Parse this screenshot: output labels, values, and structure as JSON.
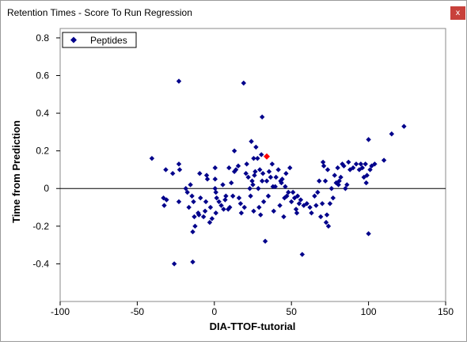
{
  "window": {
    "title": "Retention Times - Score To Run Regression",
    "close_label": "x"
  },
  "colors": {
    "points": "#00008b",
    "selected_point": "#ff0000",
    "axis": "#000000"
  },
  "chart_data": {
    "type": "scatter",
    "xlabel": "DIA-TTOF-tutorial",
    "ylabel": "Time from Prediction",
    "xlim": [
      -100,
      150
    ],
    "ylim": [
      -0.6,
      0.85
    ],
    "xticks": [
      -100,
      -50,
      0,
      50,
      100,
      150
    ],
    "yticks": [
      -0.4,
      -0.2,
      0,
      0.2,
      0.4,
      0.6,
      0.8
    ],
    "xtick_labels": [
      "-100",
      "-50",
      "0",
      "50",
      "100",
      "150"
    ],
    "ytick_labels": [
      "-0.4",
      "-0.2",
      "0",
      "0.2",
      "0.4",
      "0.6",
      "0.8"
    ],
    "legend": {
      "position": "top-left",
      "entries": [
        "Peptides"
      ]
    },
    "reference_line_y": 0,
    "series": [
      {
        "name": "Peptides",
        "points": [
          [
            -40.5,
            0.16
          ],
          [
            -33,
            -0.05
          ],
          [
            -32.5,
            -0.09
          ],
          [
            -31.5,
            0.1
          ],
          [
            -31,
            -0.06
          ],
          [
            -27,
            0.08
          ],
          [
            -26,
            -0.4
          ],
          [
            -23,
            0.57
          ],
          [
            -23,
            0.13
          ],
          [
            -23,
            -0.07
          ],
          [
            -22.5,
            0.1
          ],
          [
            -18.5,
            0.0
          ],
          [
            -17.5,
            -0.02
          ],
          [
            -16.5,
            -0.1
          ],
          [
            -15.5,
            0.02
          ],
          [
            -14.5,
            -0.04
          ],
          [
            -14,
            -0.39
          ],
          [
            -14,
            -0.23
          ],
          [
            -13.5,
            -0.07
          ],
          [
            -13,
            -0.15
          ],
          [
            -12.5,
            -0.2
          ],
          [
            -10.5,
            -0.13
          ],
          [
            -10,
            -0.14
          ],
          [
            -9.5,
            0.08
          ],
          [
            -9,
            -0.05
          ],
          [
            -7,
            -0.15
          ],
          [
            -6,
            -0.12
          ],
          [
            -5.5,
            -0.07
          ],
          [
            -5,
            0.07
          ],
          [
            -4.5,
            0.05
          ],
          [
            -3,
            -0.18
          ],
          [
            -2.5,
            -0.1
          ],
          [
            -1.5,
            -0.16
          ],
          [
            0.5,
            0.11
          ],
          [
            0.5,
            0.05
          ],
          [
            0.5,
            0.0
          ],
          [
            1,
            -0.02
          ],
          [
            1,
            -0.13
          ],
          [
            1.5,
            -0.05
          ],
          [
            3,
            -0.07
          ],
          [
            4.5,
            -0.09
          ],
          [
            5.5,
            0.02
          ],
          [
            6,
            -0.11
          ],
          [
            7,
            -0.06
          ],
          [
            7.5,
            -0.04
          ],
          [
            9,
            -0.11
          ],
          [
            9.5,
            0.11
          ],
          [
            10,
            -0.1
          ],
          [
            11,
            0.03
          ],
          [
            12,
            -0.04
          ],
          [
            13,
            0.09
          ],
          [
            13,
            0.2
          ],
          [
            14,
            0.1
          ],
          [
            15.5,
            0.12
          ],
          [
            16,
            -0.05
          ],
          [
            17,
            -0.08
          ],
          [
            17.5,
            -0.13
          ],
          [
            19,
            0.56
          ],
          [
            19.5,
            -0.1
          ],
          [
            20.5,
            0.08
          ],
          [
            21,
            0.13
          ],
          [
            22,
            0.06
          ],
          [
            23,
            0.0
          ],
          [
            23.5,
            -0.04
          ],
          [
            24,
            0.25
          ],
          [
            24.5,
            0.04
          ],
          [
            25,
            0.02
          ],
          [
            25.5,
            0.16
          ],
          [
            25.5,
            -0.12
          ],
          [
            26,
            0.07
          ],
          [
            26.5,
            0.09
          ],
          [
            27,
            0.22
          ],
          [
            28,
            0.16
          ],
          [
            28.5,
            0.0
          ],
          [
            29,
            -0.1
          ],
          [
            29.5,
            0.1
          ],
          [
            30,
            -0.14
          ],
          [
            30.5,
            0.18
          ],
          [
            31,
            0.38
          ],
          [
            31,
            0.04
          ],
          [
            31.5,
            0.08
          ],
          [
            32,
            -0.07
          ],
          [
            33,
            -0.28
          ],
          [
            34,
            0.04
          ],
          [
            35,
            -0.04
          ],
          [
            35.5,
            0.09
          ],
          [
            36.5,
            0.06
          ],
          [
            37.5,
            0.13
          ],
          [
            38,
            0.01
          ],
          [
            38.5,
            -0.12
          ],
          [
            39.5,
            0.01
          ],
          [
            40,
            0.06
          ],
          [
            41.5,
            0.1
          ],
          [
            42.5,
            -0.09
          ],
          [
            43,
            0.04
          ],
          [
            43.5,
            0.03
          ],
          [
            44,
            0.05
          ],
          [
            45,
            -0.15
          ],
          [
            45.5,
            -0.05
          ],
          [
            46,
            0.01
          ],
          [
            46.5,
            0.08
          ],
          [
            47,
            -0.04
          ],
          [
            48,
            -0.02
          ],
          [
            49,
            0.11
          ],
          [
            50,
            -0.07
          ],
          [
            51,
            -0.02
          ],
          [
            52,
            -0.05
          ],
          [
            53,
            -0.11
          ],
          [
            53.5,
            -0.13
          ],
          [
            54,
            -0.04
          ],
          [
            55,
            -0.08
          ],
          [
            56,
            -0.06
          ],
          [
            57,
            -0.35
          ],
          [
            58,
            -0.09
          ],
          [
            60,
            -0.08
          ],
          [
            62,
            -0.1
          ],
          [
            63,
            -0.13
          ],
          [
            65,
            -0.04
          ],
          [
            66,
            -0.09
          ],
          [
            67,
            -0.02
          ],
          [
            68,
            0.04
          ],
          [
            69,
            -0.15
          ],
          [
            70,
            -0.08
          ],
          [
            70.5,
            0.14
          ],
          [
            71,
            0.12
          ],
          [
            72,
            0.04
          ],
          [
            72.5,
            -0.18
          ],
          [
            73,
            -0.14
          ],
          [
            73.5,
            0.1
          ],
          [
            74,
            -0.2
          ],
          [
            75,
            -0.08
          ],
          [
            76,
            0.0
          ],
          [
            77,
            -0.05
          ],
          [
            78,
            0.07
          ],
          [
            79,
            0.03
          ],
          [
            80,
            0.11
          ],
          [
            80.5,
            0.02
          ],
          [
            81,
            0.04
          ],
          [
            82,
            0.06
          ],
          [
            83,
            0.13
          ],
          [
            84,
            0.12
          ],
          [
            85,
            0.0
          ],
          [
            86,
            0.02
          ],
          [
            87,
            0.14
          ],
          [
            88,
            0.1
          ],
          [
            90,
            0.11
          ],
          [
            92,
            0.13
          ],
          [
            94,
            0.1
          ],
          [
            95,
            0.13
          ],
          [
            96,
            0.11
          ],
          [
            97,
            0.06
          ],
          [
            98,
            0.13
          ],
          [
            98.5,
            0.03
          ],
          [
            99,
            0.07
          ],
          [
            100,
            -0.24
          ],
          [
            100,
            0.26
          ],
          [
            101,
            0.1
          ],
          [
            102,
            0.12
          ],
          [
            104,
            0.13
          ],
          [
            110,
            0.15
          ],
          [
            115,
            0.29
          ],
          [
            123,
            0.33
          ]
        ]
      }
    ],
    "selected_point": [
      34,
      0.17
    ]
  }
}
